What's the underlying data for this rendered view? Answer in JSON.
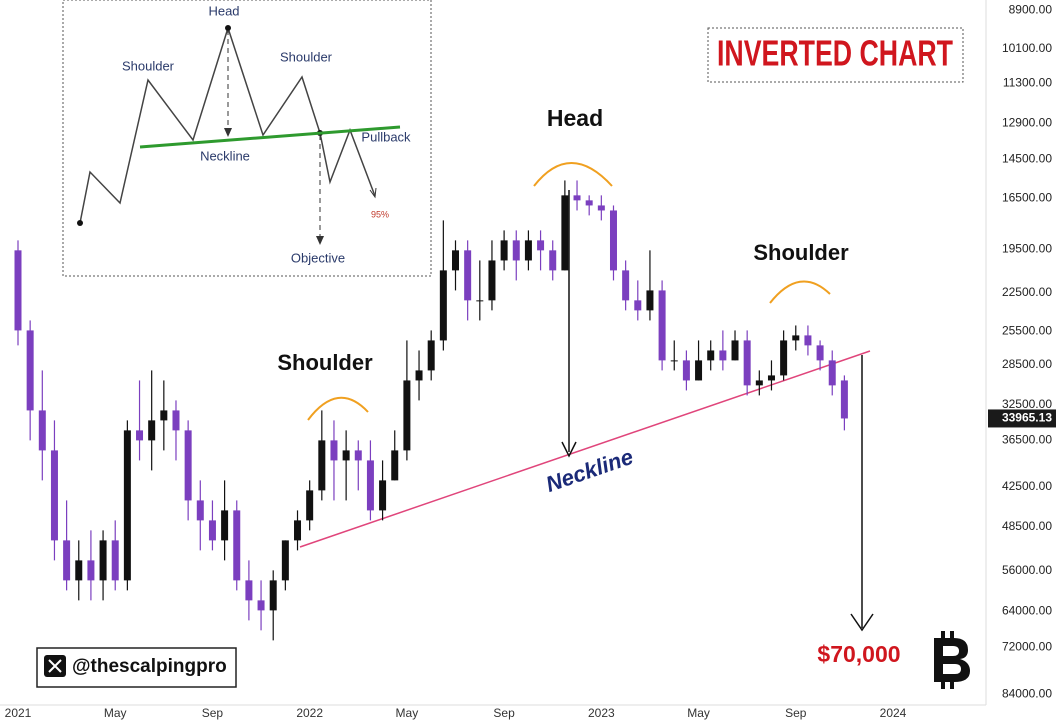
{
  "chart_data": {
    "type": "candlestick",
    "title": "INVERTED CHART",
    "log_scale": true,
    "inverted": true,
    "categories": [
      "2021",
      null,
      null,
      null,
      null,
      null,
      null,
      null,
      "May",
      null,
      null,
      null,
      null,
      null,
      null,
      null,
      "Sep",
      null,
      null,
      null,
      null,
      null,
      null,
      null,
      "2022",
      null,
      null,
      null,
      null,
      null,
      null,
      null,
      "May",
      null,
      null,
      null,
      null,
      null,
      null,
      null,
      "Sep",
      null,
      null,
      null,
      null,
      null,
      null,
      null,
      "2023",
      null,
      null,
      null,
      null,
      null,
      null,
      null,
      "May",
      null,
      null,
      null,
      null,
      null,
      null,
      null,
      "Sep",
      null,
      null,
      null,
      null,
      null,
      null,
      null,
      "2024"
    ],
    "open": [
      19560,
      25440,
      33080,
      37720,
      50680,
      57790,
      54120,
      57790,
      50680,
      57790,
      35320,
      36500,
      34180,
      33080,
      35320,
      44450,
      47460,
      50680,
      45930,
      57790,
      61710,
      63770,
      57790,
      50680,
      47460,
      43010,
      36500,
      38980,
      37720,
      38980,
      45930,
      41620,
      37720,
      29980,
      29010,
      26290,
      20890,
      19560,
      23050,
      23050,
      20220,
      18930,
      20220,
      18930,
      19560,
      20890,
      16330,
      16600,
      16880,
      17160,
      20890,
      23050,
      23820,
      22310,
      28070,
      28070,
      29980,
      28070,
      27170,
      28070,
      26290,
      30470,
      29980,
      29490,
      26290,
      25860,
      26720,
      28070,
      29980,
      null,
      null,
      null,
      null
    ],
    "high": [
      26720,
      36500,
      41620,
      54120,
      59720,
      61710,
      61710,
      61710,
      59720,
      59720,
      38980,
      40280,
      37720,
      38980,
      47460,
      52370,
      52370,
      54120,
      59720,
      65900,
      68090,
      70370,
      59720,
      52370,
      49040,
      44450,
      44450,
      44450,
      43010,
      47460,
      47460,
      41620,
      38980,
      32010,
      29980,
      27170,
      22310,
      24620,
      24620,
      23820,
      20890,
      21590,
      20890,
      20890,
      21590,
      20890,
      17160,
      17440,
      17730,
      21590,
      23820,
      24620,
      24620,
      29010,
      29010,
      30980,
      29980,
      29010,
      29010,
      28070,
      31490,
      31490,
      30980,
      29980,
      27170,
      27620,
      29010,
      31490,
      35320,
      null,
      null,
      null,
      null
    ],
    "low": [
      18930,
      24620,
      29010,
      34180,
      44450,
      50680,
      49040,
      49040,
      47460,
      34180,
      29980,
      29010,
      29980,
      32010,
      34180,
      41620,
      44450,
      41620,
      44450,
      54120,
      57790,
      55920,
      50680,
      45930,
      41620,
      33080,
      34180,
      35320,
      36500,
      36500,
      38980,
      35320,
      26290,
      27170,
      25440,
      17730,
      18930,
      18930,
      20220,
      18930,
      18320,
      18320,
      18320,
      18320,
      18930,
      15550,
      15550,
      16330,
      16330,
      16880,
      20220,
      21590,
      19560,
      21590,
      26290,
      27170,
      26290,
      26290,
      25440,
      25440,
      25440,
      29010,
      28070,
      25440,
      25030,
      25030,
      26290,
      27170,
      29490,
      null,
      null,
      null,
      null
    ],
    "close": [
      25440,
      33080,
      37720,
      50680,
      57790,
      54120,
      57790,
      50680,
      57790,
      35320,
      36500,
      34180,
      33080,
      35320,
      44450,
      47460,
      50680,
      45930,
      57790,
      61710,
      63770,
      57790,
      50680,
      47460,
      43010,
      36500,
      38980,
      37720,
      38980,
      45930,
      41620,
      37720,
      29980,
      29010,
      26290,
      20890,
      19560,
      23050,
      23050,
      20220,
      18930,
      20220,
      18930,
      19560,
      20890,
      16330,
      16600,
      16880,
      17160,
      20890,
      23050,
      23820,
      22310,
      28070,
      28070,
      29980,
      28070,
      27170,
      28070,
      26290,
      30470,
      29980,
      29490,
      26290,
      25860,
      26720,
      28070,
      30470,
      33965.13,
      null,
      null,
      null,
      null
    ],
    "up_color": "#7b3fbf",
    "down_color": "#111111",
    "ylim": [
      8600,
      87000
    ],
    "yticks": [
      {
        "value": 8900,
        "label": "8900.00"
      },
      {
        "value": 10100,
        "label": "10100.00"
      },
      {
        "value": 11300,
        "label": "11300.00"
      },
      {
        "value": 12900,
        "label": "12900.00"
      },
      {
        "value": 14500,
        "label": "14500.00"
      },
      {
        "value": 16500,
        "label": "16500.00"
      },
      {
        "value": 19500,
        "label": "19500.00"
      },
      {
        "value": 22500,
        "label": "22500.00"
      },
      {
        "value": 25500,
        "label": "25500.00"
      },
      {
        "value": 28500,
        "label": "28500.00"
      },
      {
        "value": 32500,
        "label": "32500.00"
      },
      {
        "value": 36500,
        "label": "36500.00"
      },
      {
        "value": 42500,
        "label": "42500.00"
      },
      {
        "value": 48500,
        "label": "48500.00"
      },
      {
        "value": 56000,
        "label": "56000.00"
      },
      {
        "value": 64000,
        "label": "64000.00"
      },
      {
        "value": 72000,
        "label": "72000.00"
      },
      {
        "value": 84000,
        "label": "84000.00"
      }
    ],
    "last_price": 33965.13,
    "annotations": [
      "Head",
      "Shoulder",
      "Shoulder",
      "Neckline",
      "$70,000"
    ],
    "watermark": "@thescalpingpro",
    "inset": {
      "labels": [
        "Head",
        "Shoulder",
        "Shoulder",
        "Neckline",
        "Pullback",
        "Objective",
        "95%"
      ]
    }
  }
}
